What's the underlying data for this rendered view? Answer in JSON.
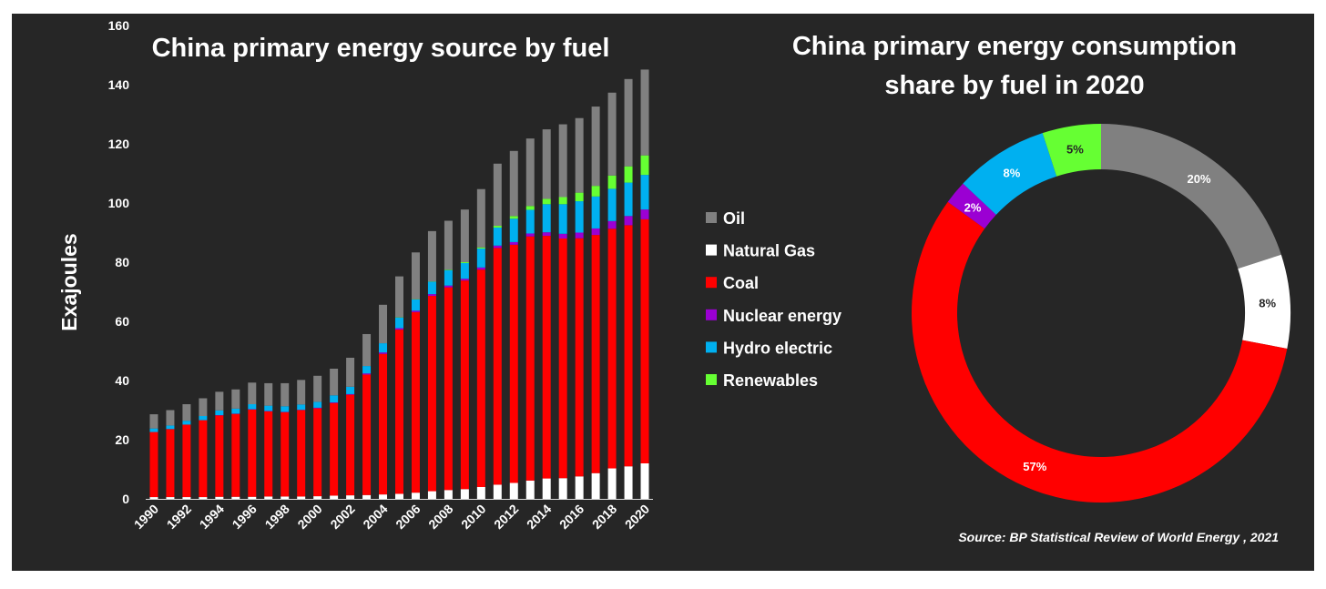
{
  "chart_data": [
    {
      "type": "bar",
      "stacked": true,
      "title": "China primary energy source by fuel",
      "ylabel": "Exajoules",
      "ylim": [
        0,
        160
      ],
      "y_ticks": [
        0,
        20,
        40,
        60,
        80,
        100,
        120,
        140,
        160
      ],
      "x_tick_labels": [
        "1990",
        "1992",
        "1994",
        "1996",
        "1998",
        "2000",
        "2002",
        "2004",
        "2006",
        "2008",
        "2010",
        "2012",
        "2014",
        "2016",
        "2018",
        "2020"
      ],
      "categories": [
        "1990",
        "1991",
        "1992",
        "1993",
        "1994",
        "1995",
        "1996",
        "1997",
        "1998",
        "1999",
        "2000",
        "2001",
        "2002",
        "2003",
        "2004",
        "2005",
        "2006",
        "2007",
        "2008",
        "2009",
        "2010",
        "2011",
        "2012",
        "2013",
        "2014",
        "2015",
        "2016",
        "2017",
        "2018",
        "2019",
        "2020"
      ],
      "series": [
        {
          "name": "Natural Gas",
          "color": "#ffffff",
          "values": [
            0.6,
            0.6,
            0.6,
            0.6,
            0.7,
            0.7,
            0.7,
            0.8,
            0.8,
            0.8,
            0.9,
            1.1,
            1.2,
            1.3,
            1.5,
            1.7,
            2.1,
            2.6,
            3.0,
            3.3,
            4.0,
            4.8,
            5.4,
            6.2,
            6.9,
            7.0,
            7.6,
            8.7,
            10.3,
            11.0,
            12.0
          ]
        },
        {
          "name": "Coal",
          "color": "#ff0000",
          "values": [
            22.0,
            23.0,
            24.5,
            26.0,
            27.5,
            28.0,
            29.5,
            28.8,
            28.5,
            29.2,
            29.7,
            31.3,
            34.0,
            40.7,
            47.5,
            55.5,
            61.0,
            66.0,
            68.5,
            70.5,
            73.5,
            80.0,
            80.5,
            82.5,
            82.0,
            81.0,
            80.5,
            80.5,
            81.0,
            81.5,
            82.5
          ]
        },
        {
          "name": "Nuclear energy",
          "color": "#9b00d3",
          "values": [
            0.0,
            0.0,
            0.0,
            0.0,
            0.1,
            0.1,
            0.1,
            0.1,
            0.1,
            0.1,
            0.2,
            0.2,
            0.2,
            0.4,
            0.5,
            0.5,
            0.5,
            0.6,
            0.6,
            0.6,
            0.7,
            0.8,
            0.9,
            1.0,
            1.2,
            1.6,
            1.9,
            2.2,
            2.6,
            3.1,
            3.3
          ]
        },
        {
          "name": "Hydro electric",
          "color": "#00b0f0",
          "values": [
            1.2,
            1.2,
            1.3,
            1.4,
            1.6,
            1.7,
            1.7,
            1.8,
            1.9,
            1.8,
            2.0,
            2.4,
            2.5,
            2.5,
            3.1,
            3.6,
            3.8,
            4.2,
            5.2,
            5.3,
            6.4,
            6.1,
            7.9,
            8.0,
            9.5,
            10.0,
            10.6,
            10.8,
            10.9,
            11.3,
            11.7
          ]
        },
        {
          "name": "Renewables",
          "color": "#66ff33",
          "values": [
            0.0,
            0.0,
            0.0,
            0.0,
            0.0,
            0.0,
            0.0,
            0.0,
            0.0,
            0.0,
            0.0,
            0.0,
            0.0,
            0.0,
            0.0,
            0.1,
            0.1,
            0.1,
            0.2,
            0.3,
            0.4,
            0.6,
            0.9,
            1.3,
            1.8,
            2.4,
            2.9,
            3.6,
            4.5,
            5.5,
            6.6
          ]
        },
        {
          "name": "Oil",
          "color": "#808080",
          "values": [
            4.8,
            5.2,
            5.6,
            6.0,
            6.3,
            6.5,
            7.3,
            7.6,
            7.8,
            8.3,
            8.8,
            9.0,
            9.8,
            10.8,
            13.0,
            13.8,
            15.8,
            17.0,
            16.5,
            17.8,
            19.7,
            21.0,
            22.0,
            22.8,
            23.5,
            24.6,
            25.2,
            26.8,
            28.0,
            29.5,
            29.0
          ]
        }
      ]
    },
    {
      "type": "pie",
      "donut": true,
      "title": "China primary energy consumption share by fuel in 2020",
      "title_lines": [
        "China primary energy consumption",
        "share by fuel in 2020"
      ],
      "slices": [
        {
          "name": "Oil",
          "value": 20,
          "label": "20%",
          "color": "#808080"
        },
        {
          "name": "Natural Gas",
          "value": 8,
          "label": "8%",
          "color": "#ffffff"
        },
        {
          "name": "Coal",
          "value": 57,
          "label": "57%",
          "color": "#ff0000"
        },
        {
          "name": "Nuclear energy",
          "value": 2,
          "label": "2%",
          "color": "#9b00d3"
        },
        {
          "name": "Hydro electric",
          "value": 8,
          "label": "8%",
          "color": "#00b0f0"
        },
        {
          "name": "Renewables",
          "value": 5,
          "label": "5%",
          "color": "#66ff33"
        }
      ]
    }
  ],
  "legend": [
    {
      "label": "Oil",
      "color": "#808080"
    },
    {
      "label": "Natural Gas",
      "color": "#ffffff"
    },
    {
      "label": "Coal",
      "color": "#ff0000"
    },
    {
      "label": "Nuclear energy",
      "color": "#9b00d3"
    },
    {
      "label": "Hydro electric",
      "color": "#00b0f0"
    },
    {
      "label": "Renewables",
      "color": "#66ff33"
    }
  ],
  "source": "Source: BP Statistical Review of World Energy , 2021"
}
